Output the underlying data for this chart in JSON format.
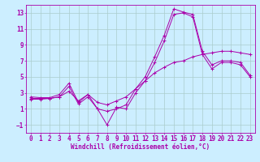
{
  "background_color": "#cceeff",
  "grid_color": "#aacccc",
  "line_color": "#aa00aa",
  "xlabel": "Windchill (Refroidissement éolien,°C)",
  "xlim": [
    -0.5,
    23.5
  ],
  "ylim": [
    -2,
    14
  ],
  "yticks": [
    -1,
    1,
    3,
    5,
    7,
    9,
    11,
    13
  ],
  "xticks": [
    0,
    1,
    2,
    3,
    4,
    5,
    6,
    7,
    8,
    9,
    10,
    11,
    12,
    13,
    14,
    15,
    16,
    17,
    18,
    19,
    20,
    21,
    22,
    23
  ],
  "series1_x": [
    0,
    1,
    2,
    3,
    4,
    5,
    6,
    7,
    8,
    9,
    10,
    11,
    12,
    13,
    14,
    15,
    16,
    17,
    18,
    19,
    20,
    21,
    22,
    23
  ],
  "series1_y": [
    2.5,
    2.4,
    2.4,
    2.8,
    4.2,
    1.8,
    2.8,
    1.0,
    0.7,
    1.0,
    1.5,
    3.5,
    5.0,
    7.5,
    10.2,
    13.5,
    13.1,
    12.8,
    8.2,
    6.5,
    7.0,
    7.0,
    6.8,
    5.2
  ],
  "series2_x": [
    0,
    1,
    2,
    3,
    4,
    5,
    6,
    7,
    8,
    9,
    10,
    11,
    12,
    13,
    14,
    15,
    16,
    17,
    18,
    19,
    20,
    21,
    22,
    23
  ],
  "series2_y": [
    2.3,
    2.3,
    2.3,
    2.5,
    3.8,
    1.6,
    2.5,
    1.0,
    -1.0,
    1.2,
    1.0,
    3.0,
    4.5,
    6.8,
    9.5,
    12.8,
    13.0,
    12.5,
    7.8,
    6.0,
    6.8,
    6.8,
    6.5,
    5.0
  ],
  "series3_x": [
    0,
    1,
    2,
    3,
    4,
    5,
    6,
    7,
    8,
    9,
    10,
    11,
    12,
    13,
    14,
    15,
    16,
    17,
    18,
    19,
    20,
    21,
    22,
    23
  ],
  "series3_y": [
    2.2,
    2.2,
    2.3,
    2.5,
    3.2,
    2.0,
    2.8,
    1.8,
    1.5,
    2.0,
    2.5,
    3.5,
    4.5,
    5.5,
    6.2,
    6.8,
    7.0,
    7.5,
    7.8,
    8.0,
    8.2,
    8.2,
    8.0,
    7.8
  ],
  "xlabel_fontsize": 5.5,
  "tick_fontsize": 5.5
}
